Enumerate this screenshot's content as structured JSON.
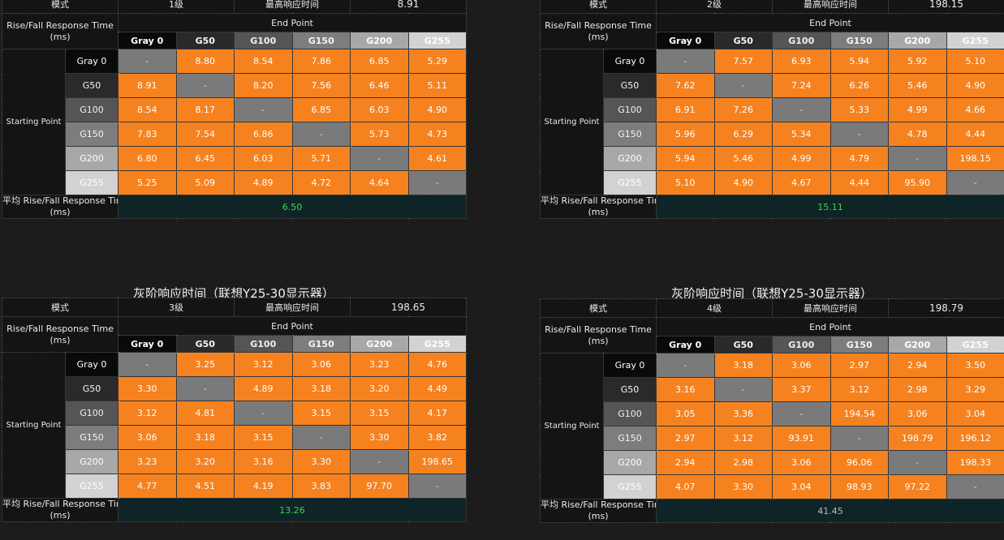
{
  "colors": {
    "orange": "#f6821f",
    "diag": "#7a7a7a",
    "avg_bg": "#0f2426",
    "avg_green": "#39d653",
    "avg_gray": "#bdbdbd",
    "gray_levels": [
      "#0a0a0a",
      "#2a2a2a",
      "#555555",
      "#7d7d7d",
      "#a8a8a8",
      "#d2d2d2"
    ]
  },
  "labels": {
    "mode": "模式",
    "max_label": "最高响应时间",
    "rise_fall": "Rise/Fall Response Time",
    "ms": "(ms)",
    "end_point": "End Point",
    "starting_point": "Starting Point",
    "avg": "平均 Rise/Fall Response Time",
    "dash": "-"
  },
  "chart_data": [
    {
      "type": "table",
      "title": "",
      "mode": "1级",
      "max_response": "8.91",
      "columns": [
        "Gray 0",
        "G50",
        "G100",
        "G150",
        "G200",
        "G255"
      ],
      "rows": [
        "Gray 0",
        "G50",
        "G100",
        "G150",
        "G200",
        "G255"
      ],
      "values": [
        [
          "-",
          "8.80",
          "8.54",
          "7.86",
          "6.85",
          "5.29"
        ],
        [
          "8.91",
          "-",
          "8.20",
          "7.56",
          "6.46",
          "5.11"
        ],
        [
          "8.54",
          "8.17",
          "-",
          "6.85",
          "6.03",
          "4.90"
        ],
        [
          "7.83",
          "7.54",
          "6.86",
          "-",
          "5.73",
          "4.73"
        ],
        [
          "6.80",
          "6.45",
          "6.03",
          "5.71",
          "-",
          "4.61"
        ],
        [
          "5.25",
          "5.09",
          "4.89",
          "4.72",
          "4.64",
          "-"
        ]
      ],
      "average": "6.50",
      "average_color": "#39d653"
    },
    {
      "type": "table",
      "title": "",
      "mode": "2级",
      "max_response": "198.15",
      "columns": [
        "Gray 0",
        "G50",
        "G100",
        "G150",
        "G200",
        "G255"
      ],
      "rows": [
        "Gray 0",
        "G50",
        "G100",
        "G150",
        "G200",
        "G255"
      ],
      "values": [
        [
          "-",
          "7.57",
          "6.93",
          "5.94",
          "5.92",
          "5.10"
        ],
        [
          "7.62",
          "-",
          "7.24",
          "6.26",
          "5.46",
          "4.90"
        ],
        [
          "6.91",
          "7.26",
          "-",
          "5.33",
          "4.99",
          "4.66"
        ],
        [
          "5.96",
          "6.29",
          "5.34",
          "-",
          "4.78",
          "4.44"
        ],
        [
          "5.94",
          "5.46",
          "4.99",
          "4.79",
          "-",
          "198.15"
        ],
        [
          "5.10",
          "4.90",
          "4.67",
          "4.44",
          "95.90",
          "-"
        ]
      ],
      "average": "15.11",
      "average_color": "#39d653"
    },
    {
      "type": "table",
      "title": "灰阶响应时间（联想Y25-30显示器）",
      "mode": "3级",
      "max_response": "198.65",
      "columns": [
        "Gray 0",
        "G50",
        "G100",
        "G150",
        "G200",
        "G255"
      ],
      "rows": [
        "Gray 0",
        "G50",
        "G100",
        "G150",
        "G200",
        "G255"
      ],
      "values": [
        [
          "-",
          "3.25",
          "3.12",
          "3.06",
          "3.23",
          "4.76"
        ],
        [
          "3.30",
          "-",
          "4.89",
          "3.18",
          "3.20",
          "4.49"
        ],
        [
          "3.12",
          "4.81",
          "-",
          "3.15",
          "3.15",
          "4.17"
        ],
        [
          "3.06",
          "3.18",
          "3.15",
          "-",
          "3.30",
          "3.82"
        ],
        [
          "3.23",
          "3.20",
          "3.16",
          "3.30",
          "-",
          "198.65"
        ],
        [
          "4.77",
          "4.51",
          "4.19",
          "3.83",
          "97.70",
          "-"
        ]
      ],
      "average": "13.26",
      "average_color": "#39d653"
    },
    {
      "type": "table",
      "title": "灰阶响应时间（联想Y25-30显示器）",
      "mode": "4级",
      "max_response": "198.79",
      "columns": [
        "Gray 0",
        "G50",
        "G100",
        "G150",
        "G200",
        "G255"
      ],
      "rows": [
        "Gray 0",
        "G50",
        "G100",
        "G150",
        "G200",
        "G255"
      ],
      "values": [
        [
          "-",
          "3.18",
          "3.06",
          "2.97",
          "2.94",
          "3.50"
        ],
        [
          "3.16",
          "-",
          "3.37",
          "3.12",
          "2.98",
          "3.29"
        ],
        [
          "3.05",
          "3.36",
          "-",
          "194.54",
          "3.06",
          "3.04"
        ],
        [
          "2.97",
          "3.12",
          "93.91",
          "-",
          "198.79",
          "196.12"
        ],
        [
          "2.94",
          "2.98",
          "3.06",
          "96.06",
          "-",
          "198.33"
        ],
        [
          "4.07",
          "3.30",
          "3.04",
          "98.93",
          "97.22",
          "-"
        ]
      ],
      "average": "41.45",
      "average_color": "#bdbdbd"
    }
  ]
}
